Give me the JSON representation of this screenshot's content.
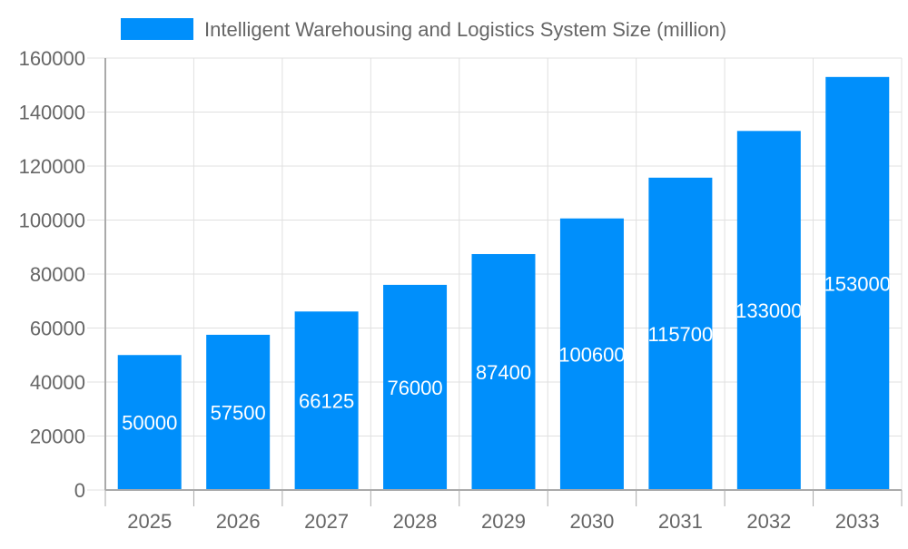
{
  "chart_data": {
    "type": "bar",
    "categories": [
      "2025",
      "2026",
      "2027",
      "2028",
      "2029",
      "2030",
      "2031",
      "2032",
      "2033"
    ],
    "series": [
      {
        "name": "Intelligent Warehousing and Logistics System Size (million)",
        "values": [
          50000,
          57500,
          66125,
          76000,
          87400,
          100600,
          115700,
          133000,
          153000
        ],
        "color": "#008ffb"
      }
    ],
    "ylim": [
      0,
      160000
    ],
    "yticks": [
      0,
      20000,
      40000,
      60000,
      80000,
      100000,
      120000,
      140000,
      160000
    ],
    "grid": true,
    "legend": "top",
    "data_labels": true,
    "xlabel": "",
    "ylabel": ""
  }
}
